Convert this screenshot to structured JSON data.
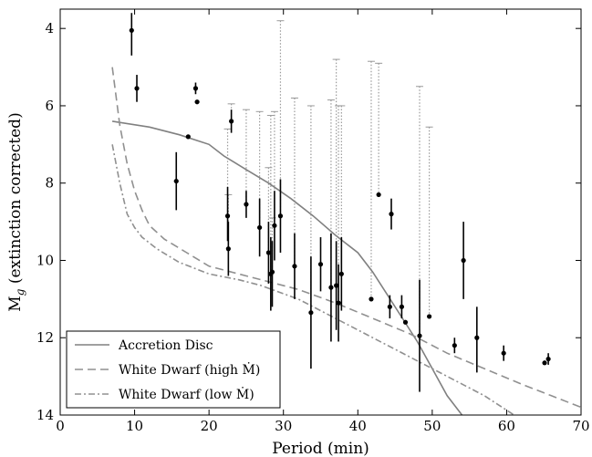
{
  "chart_data": {
    "type": "scatter",
    "xlabel": "Period (min)",
    "ylabel": "M_g (extinction corrected)",
    "xlim": [
      0,
      70
    ],
    "ylim": [
      14,
      3.5
    ],
    "y_inverted": true,
    "grid": false,
    "legend_placement": "bottom-left",
    "x_ticks": [
      0,
      10,
      20,
      30,
      40,
      50,
      60,
      70
    ],
    "y_ticks": [
      4,
      6,
      8,
      10,
      12,
      14
    ],
    "series": [
      {
        "name": "Accretion Disc",
        "style": "solid",
        "color": "#808080",
        "points": [
          [
            7,
            6.4
          ],
          [
            12,
            6.55
          ],
          [
            16,
            6.75
          ],
          [
            20,
            7.0
          ],
          [
            22,
            7.3
          ],
          [
            25,
            7.65
          ],
          [
            28,
            8.0
          ],
          [
            31,
            8.4
          ],
          [
            34,
            8.85
          ],
          [
            37,
            9.35
          ],
          [
            40,
            9.8
          ],
          [
            42,
            10.3
          ],
          [
            44,
            10.9
          ],
          [
            46,
            11.5
          ],
          [
            48,
            12.1
          ],
          [
            50,
            12.8
          ],
          [
            52,
            13.5
          ],
          [
            54,
            14.0
          ]
        ]
      },
      {
        "name": "White Dwarf (high Ṁ)",
        "style": "dashed",
        "color": "#909090",
        "points": [
          [
            7,
            5.0
          ],
          [
            8,
            6.5
          ],
          [
            9,
            7.5
          ],
          [
            10,
            8.2
          ],
          [
            11,
            8.7
          ],
          [
            12,
            9.1
          ],
          [
            14,
            9.45
          ],
          [
            17,
            9.8
          ],
          [
            20,
            10.15
          ],
          [
            23,
            10.3
          ],
          [
            27,
            10.5
          ],
          [
            32,
            10.75
          ],
          [
            37,
            11.1
          ],
          [
            42,
            11.5
          ],
          [
            47,
            11.9
          ],
          [
            52,
            12.4
          ],
          [
            57,
            12.8
          ],
          [
            62,
            13.2
          ],
          [
            66,
            13.5
          ],
          [
            70,
            13.8
          ]
        ]
      },
      {
        "name": "White Dwarf (low Ṁ)",
        "style": "dash-dot",
        "color": "#909090",
        "points": [
          [
            7,
            7.0
          ],
          [
            8,
            8.0
          ],
          [
            9,
            8.8
          ],
          [
            10,
            9.15
          ],
          [
            11,
            9.4
          ],
          [
            13,
            9.7
          ],
          [
            16,
            10.05
          ],
          [
            20,
            10.35
          ],
          [
            24,
            10.5
          ],
          [
            27,
            10.65
          ],
          [
            32,
            11.0
          ],
          [
            37,
            11.5
          ],
          [
            42,
            12.0
          ],
          [
            47,
            12.5
          ],
          [
            52,
            13.0
          ],
          [
            57,
            13.5
          ],
          [
            61,
            14.0
          ]
        ]
      }
    ],
    "points": [
      {
        "x": 9.6,
        "y": 4.05,
        "lo": 3.6,
        "hi": 4.7
      },
      {
        "x": 10.3,
        "y": 5.55,
        "lo": 5.2,
        "hi": 5.9
      },
      {
        "x": 15.6,
        "y": 7.95,
        "lo": 7.2,
        "hi": 8.7
      },
      {
        "x": 17.2,
        "y": 6.8
      },
      {
        "x": 18.2,
        "y": 5.55,
        "lo": 5.4,
        "hi": 5.7
      },
      {
        "x": 18.4,
        "y": 5.9
      },
      {
        "x": 22.5,
        "y": 8.85,
        "lo": 8.1,
        "hi": 9.5,
        "ulim": 6.6
      },
      {
        "x": 22.6,
        "y": 9.7,
        "lo": 9.0,
        "hi": 10.4,
        "ulim": 8.3
      },
      {
        "x": 23.0,
        "y": 6.4,
        "lo": 6.1,
        "hi": 6.7,
        "ulim": 5.95
      },
      {
        "x": 25.0,
        "y": 8.55,
        "lo": 8.2,
        "hi": 8.9,
        "ulim": 6.1
      },
      {
        "x": 26.8,
        "y": 9.15,
        "lo": 8.4,
        "hi": 9.9,
        "ulim": 6.15
      },
      {
        "x": 28.0,
        "y": 9.8,
        "lo": 9.0,
        "hi": 10.6,
        "ulim": 7.6
      },
      {
        "x": 28.3,
        "y": 10.35,
        "lo": 9.4,
        "hi": 11.3,
        "ulim": 6.25
      },
      {
        "x": 28.5,
        "y": 10.3,
        "lo": 9.5,
        "hi": 11.2,
        "ulim": 8.9
      },
      {
        "x": 28.8,
        "y": 9.1,
        "lo": 8.2,
        "hi": 10.0,
        "ulim": 6.15
      },
      {
        "x": 29.6,
        "y": 8.85,
        "lo": 7.9,
        "hi": 9.8,
        "ulim": 3.8
      },
      {
        "x": 31.5,
        "y": 10.15,
        "lo": 9.3,
        "hi": 11.0,
        "ulim": 5.8
      },
      {
        "x": 33.7,
        "y": 11.35,
        "lo": 9.9,
        "hi": 12.8,
        "ulim": 6.0
      },
      {
        "x": 35.0,
        "y": 10.1,
        "lo": 9.4,
        "hi": 10.8
      },
      {
        "x": 36.4,
        "y": 10.7,
        "lo": 9.3,
        "hi": 12.1,
        "ulim": 5.85
      },
      {
        "x": 37.1,
        "y": 10.65,
        "lo": 9.5,
        "hi": 11.8,
        "ulim": 4.8
      },
      {
        "x": 37.4,
        "y": 11.1,
        "lo": 10.1,
        "hi": 12.1,
        "ulim": 6.0
      },
      {
        "x": 37.8,
        "y": 10.35,
        "lo": 9.4,
        "hi": 11.3,
        "ulim": 6.0
      },
      {
        "x": 41.8,
        "y": 11.0,
        "ulim": 4.85
      },
      {
        "x": 42.8,
        "y": 8.3,
        "ulim": 4.9
      },
      {
        "x": 44.3,
        "y": 11.2,
        "lo": 10.9,
        "hi": 11.5
      },
      {
        "x": 44.5,
        "y": 8.8,
        "lo": 8.4,
        "hi": 9.2
      },
      {
        "x": 45.9,
        "y": 11.2,
        "lo": 10.9,
        "hi": 11.5
      },
      {
        "x": 46.4,
        "y": 11.6
      },
      {
        "x": 48.3,
        "y": 11.95,
        "lo": 10.5,
        "hi": 13.4,
        "ulim": 5.5
      },
      {
        "x": 49.6,
        "y": 11.45,
        "ulim": 6.55
      },
      {
        "x": 53.0,
        "y": 12.2,
        "lo": 12.0,
        "hi": 12.4
      },
      {
        "x": 54.2,
        "y": 10.0,
        "lo": 9.0,
        "hi": 11.0
      },
      {
        "x": 56.0,
        "y": 12.0,
        "lo": 11.2,
        "hi": 12.9
      },
      {
        "x": 59.6,
        "y": 12.4,
        "lo": 12.2,
        "hi": 12.6
      },
      {
        "x": 65.1,
        "y": 12.65
      },
      {
        "x": 65.6,
        "y": 12.55,
        "lo": 12.4,
        "hi": 12.7
      }
    ]
  }
}
